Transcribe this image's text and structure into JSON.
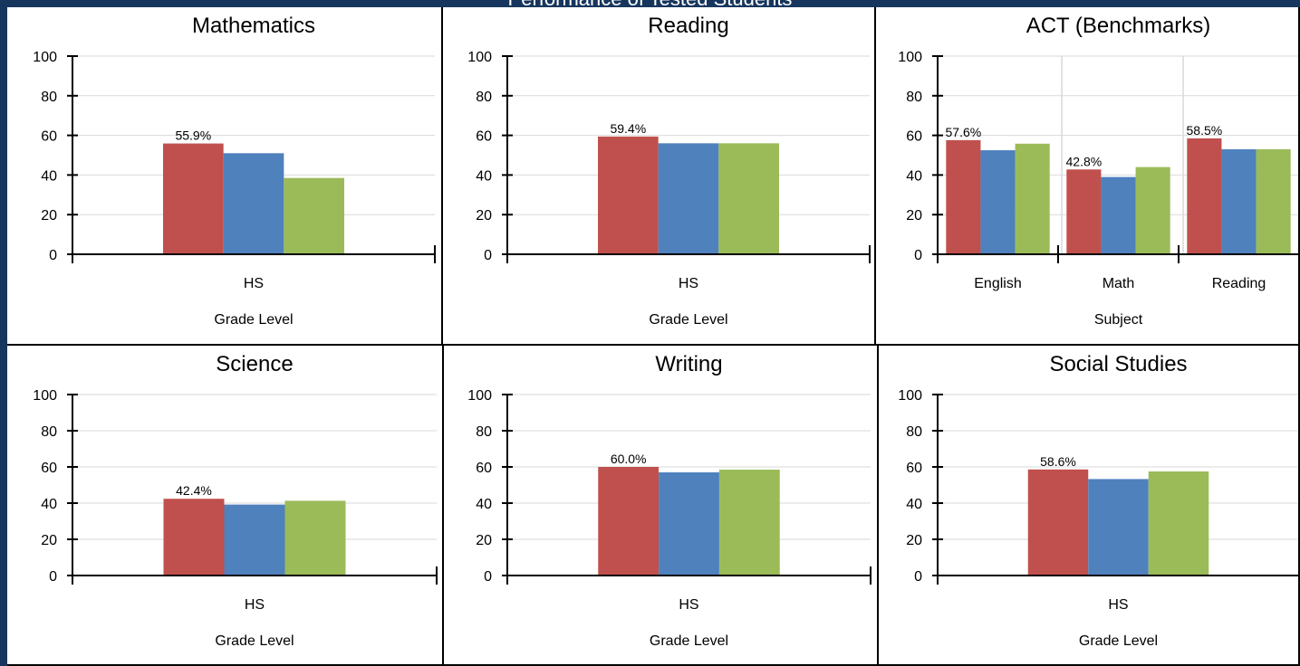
{
  "page_title": "Performance of Tested Students",
  "colors": {
    "series": [
      "#c0504d",
      "#4f81bd",
      "#9bbb59"
    ],
    "background": "#17365d",
    "grid": "#d9d9d9"
  },
  "chart_data": [
    {
      "type": "bar",
      "title": "Mathematics",
      "xlabel": "Grade Level",
      "categories": [
        "HS"
      ],
      "ylim": [
        0,
        100
      ],
      "yticks": [
        0,
        20,
        40,
        60,
        80,
        100
      ],
      "series": [
        {
          "values": [
            55.9
          ]
        },
        {
          "values": [
            51
          ]
        },
        {
          "values": [
            38.5
          ]
        }
      ],
      "data_labels": [
        "55.9%"
      ]
    },
    {
      "type": "bar",
      "title": "Reading",
      "xlabel": "Grade Level",
      "categories": [
        "HS"
      ],
      "ylim": [
        0,
        100
      ],
      "yticks": [
        0,
        20,
        40,
        60,
        80,
        100
      ],
      "series": [
        {
          "values": [
            59.4
          ]
        },
        {
          "values": [
            56
          ]
        },
        {
          "values": [
            56
          ]
        }
      ],
      "data_labels": [
        "59.4%"
      ]
    },
    {
      "type": "bar",
      "title": "ACT (Benchmarks)",
      "xlabel": "Subject",
      "categories": [
        "English",
        "Math",
        "Reading"
      ],
      "ylim": [
        0,
        100
      ],
      "yticks": [
        0,
        20,
        40,
        60,
        80,
        100
      ],
      "grid": true,
      "series": [
        {
          "values": [
            57.6,
            42.8,
            58.5
          ]
        },
        {
          "values": [
            52.5,
            39,
            53
          ]
        },
        {
          "values": [
            55.8,
            44,
            53
          ]
        }
      ],
      "data_labels": [
        "57.6%",
        "42.8%",
        "58.5%"
      ]
    },
    {
      "type": "bar",
      "title": "Science",
      "xlabel": "Grade Level",
      "categories": [
        "HS"
      ],
      "ylim": [
        0,
        100
      ],
      "yticks": [
        0,
        20,
        40,
        60,
        80,
        100
      ],
      "series": [
        {
          "values": [
            42.4
          ]
        },
        {
          "values": [
            39.2
          ]
        },
        {
          "values": [
            41.3
          ]
        }
      ],
      "data_labels": [
        "42.4%"
      ]
    },
    {
      "type": "bar",
      "title": "Writing",
      "xlabel": "Grade Level",
      "categories": [
        "HS"
      ],
      "ylim": [
        0,
        100
      ],
      "yticks": [
        0,
        20,
        40,
        60,
        80,
        100
      ],
      "series": [
        {
          "values": [
            60.0
          ]
        },
        {
          "values": [
            57
          ]
        },
        {
          "values": [
            58.5
          ]
        }
      ],
      "data_labels": [
        "60.0%"
      ]
    },
    {
      "type": "bar",
      "title": "Social Studies",
      "xlabel": "Grade Level",
      "categories": [
        "HS"
      ],
      "ylim": [
        0,
        100
      ],
      "yticks": [
        0,
        20,
        40,
        60,
        80,
        100
      ],
      "series": [
        {
          "values": [
            58.6
          ]
        },
        {
          "values": [
            53.3
          ]
        },
        {
          "values": [
            57.5
          ]
        }
      ],
      "data_labels": [
        "58.6%"
      ]
    }
  ]
}
